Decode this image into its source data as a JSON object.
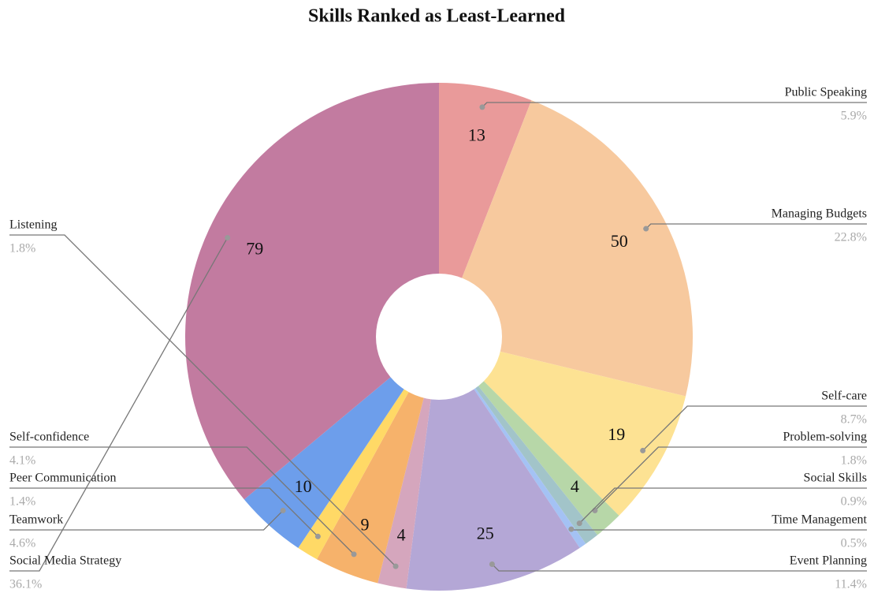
{
  "chart_data": {
    "type": "pie",
    "title": "Skills Ranked as Least-Learned",
    "donut": true,
    "categories": [
      "Public Speaking",
      "Managing Budgets",
      "Self-care",
      "Problem-solving",
      "Social Skills",
      "Time Management",
      "Event Planning",
      "Listening",
      "Self-confidence",
      "Peer Communication",
      "Teamwork",
      "Social Media Strategy"
    ],
    "values": [
      13,
      50,
      19,
      4,
      2,
      1,
      25,
      4,
      9,
      3,
      10,
      79
    ],
    "percent_labels": [
      "5.9%",
      "22.8%",
      "8.7%",
      "1.8%",
      "0.9%",
      "0.5%",
      "11.4%",
      "1.8%",
      "4.1%",
      "1.4%",
      "4.6%",
      "36.1%"
    ],
    "colors": [
      "#e99a9a",
      "#f7c99e",
      "#fde293",
      "#b7d7a8",
      "#a2c4c9",
      "#a4c2f4",
      "#b4a7d6",
      "#d5a6bd",
      "#f6b26b",
      "#ffd966",
      "#6d9eeb",
      "#c27ba0"
    ]
  }
}
